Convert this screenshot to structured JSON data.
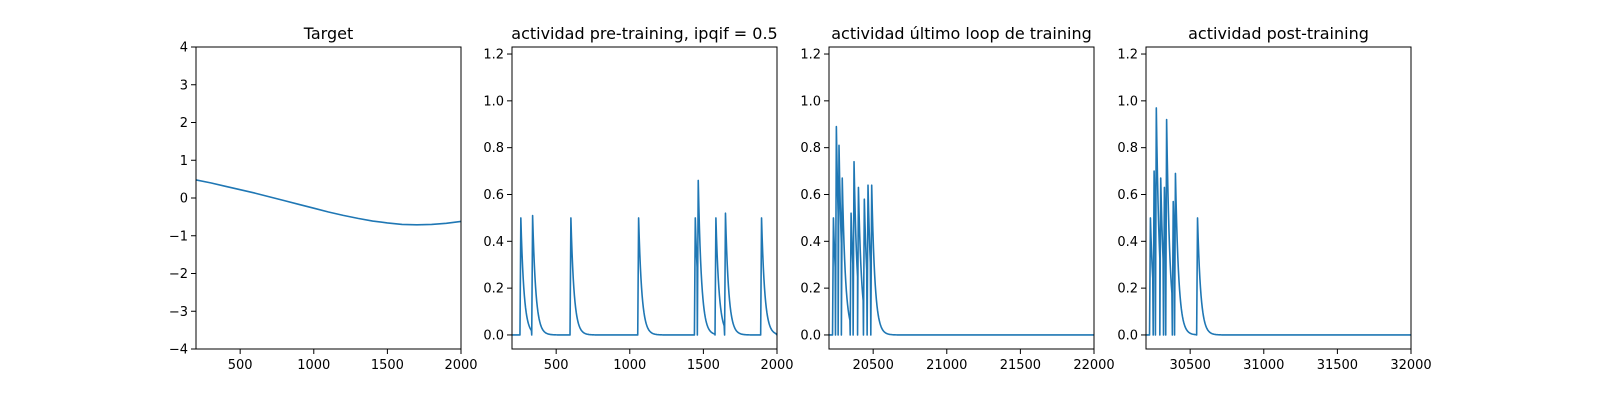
{
  "chart_data": [
    {
      "type": "line",
      "title": "Target",
      "xlim": [
        200,
        2000
      ],
      "ylim": [
        -4,
        4
      ],
      "xticks": [
        500,
        1000,
        1500,
        2000
      ],
      "yticks": [
        -4,
        -3,
        -2,
        -1,
        0,
        1,
        2,
        3,
        4
      ],
      "ytick_decimals": 0,
      "series": [
        {
          "color": "#1f77b4",
          "points": [
            [
              200,
              0.48
            ],
            [
              300,
              0.4
            ],
            [
              400,
              0.31
            ],
            [
              500,
              0.22
            ],
            [
              600,
              0.13
            ],
            [
              700,
              0.03
            ],
            [
              800,
              -0.07
            ],
            [
              900,
              -0.17
            ],
            [
              1000,
              -0.27
            ],
            [
              1100,
              -0.37
            ],
            [
              1200,
              -0.46
            ],
            [
              1300,
              -0.54
            ],
            [
              1400,
              -0.61
            ],
            [
              1500,
              -0.66
            ],
            [
              1600,
              -0.7
            ],
            [
              1700,
              -0.71
            ],
            [
              1800,
              -0.7
            ],
            [
              1900,
              -0.67
            ],
            [
              2000,
              -0.62
            ]
          ]
        }
      ]
    },
    {
      "type": "line",
      "title": "actividad pre-training, ipqif = 0.5",
      "xlim": [
        200,
        2000
      ],
      "ylim": [
        -0.06,
        1.23
      ],
      "xticks": [
        500,
        1000,
        1500,
        2000
      ],
      "yticks": [
        0.0,
        0.2,
        0.4,
        0.6,
        0.8,
        1.0,
        1.2
      ],
      "ytick_decimals": 1,
      "spike_width": 6,
      "tau": 22,
      "baseline": 0,
      "spikes": [
        [
          260,
          0.5
        ],
        [
          340,
          0.51
        ],
        [
          600,
          0.5
        ],
        [
          1060,
          0.5
        ],
        [
          1445,
          0.5
        ],
        [
          1465,
          0.66
        ],
        [
          1585,
          0.5
        ],
        [
          1650,
          0.52
        ],
        [
          1895,
          0.5
        ]
      ],
      "series": [
        {
          "color": "#1f77b4"
        }
      ]
    },
    {
      "type": "line",
      "title": "actividad último loop de training",
      "xlim": [
        20200,
        22000
      ],
      "ylim": [
        -0.06,
        1.23
      ],
      "xticks": [
        20500,
        21000,
        21500,
        22000
      ],
      "yticks": [
        0.0,
        0.2,
        0.4,
        0.6,
        0.8,
        1.0,
        1.2
      ],
      "ytick_decimals": 1,
      "spike_width": 6,
      "tau": 22,
      "baseline": 0,
      "spikes": [
        [
          20230,
          0.5
        ],
        [
          20250,
          0.89
        ],
        [
          20268,
          0.81
        ],
        [
          20290,
          0.67
        ],
        [
          20350,
          0.52
        ],
        [
          20370,
          0.74
        ],
        [
          20400,
          0.63
        ],
        [
          20440,
          0.58
        ],
        [
          20465,
          0.64
        ],
        [
          20490,
          0.64
        ]
      ],
      "series": [
        {
          "color": "#1f77b4"
        }
      ]
    },
    {
      "type": "line",
      "title": "actividad post-training",
      "xlim": [
        30200,
        32000
      ],
      "ylim": [
        -0.06,
        1.23
      ],
      "xticks": [
        30500,
        31000,
        31500,
        32000
      ],
      "yticks": [
        0.0,
        0.2,
        0.4,
        0.6,
        0.8,
        1.0,
        1.2
      ],
      "ytick_decimals": 1,
      "spike_width": 6,
      "tau": 22,
      "baseline": 0,
      "spikes": [
        [
          30230,
          0.5
        ],
        [
          30255,
          0.7
        ],
        [
          30270,
          0.97
        ],
        [
          30300,
          0.67
        ],
        [
          30325,
          0.63
        ],
        [
          30340,
          0.92
        ],
        [
          30385,
          0.57
        ],
        [
          30400,
          0.69
        ],
        [
          30550,
          0.5
        ]
      ],
      "series": [
        {
          "color": "#1f77b4"
        }
      ]
    }
  ]
}
